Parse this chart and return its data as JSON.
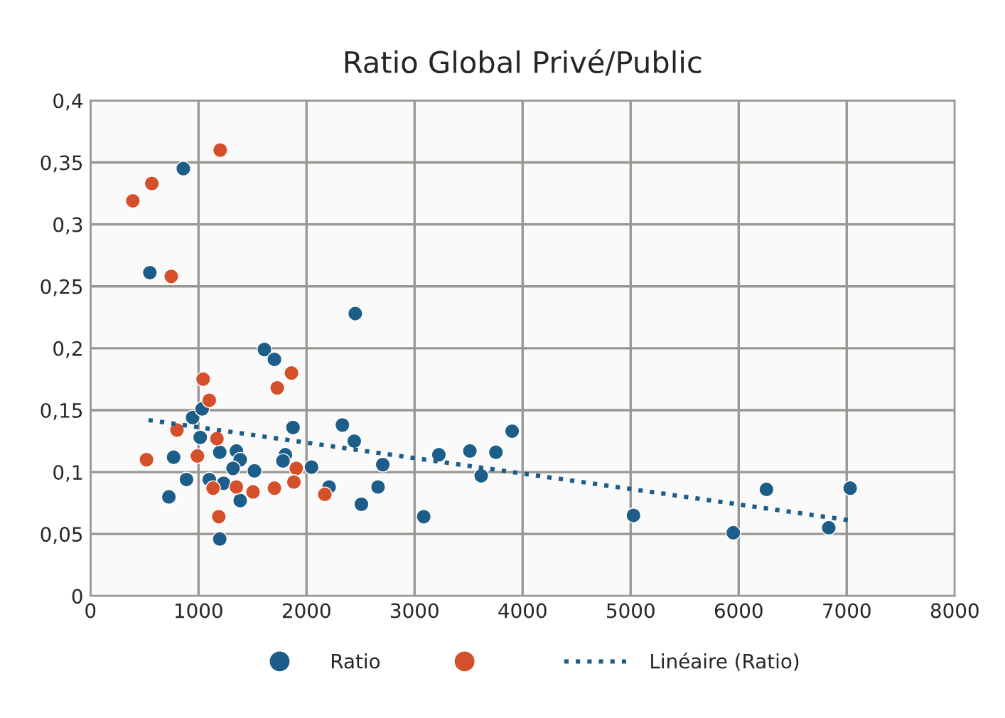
{
  "chart_data": {
    "type": "scatter",
    "title": "Ratio Global Privé/Public",
    "xlim": [
      0,
      8000
    ],
    "xticks": [
      0,
      1000,
      2000,
      3000,
      4000,
      5000,
      6000,
      7000,
      8000
    ],
    "ylim": [
      0,
      0.4
    ],
    "yticks": [
      {
        "value": 0,
        "label": "0"
      },
      {
        "value": 0.05,
        "label": "0,05"
      },
      {
        "value": 0.1,
        "label": "0,1"
      },
      {
        "value": 0.15,
        "label": "0,15"
      },
      {
        "value": 0.2,
        "label": "0,2"
      },
      {
        "value": 0.25,
        "label": "0,25"
      },
      {
        "value": 0.3,
        "label": "0,3"
      },
      {
        "value": 0.35,
        "label": "0,35"
      },
      {
        "value": 0.4,
        "label": "0,4"
      }
    ],
    "grid": true,
    "legend": "bottom",
    "marker": "circle",
    "series": [
      {
        "name": "Ratio",
        "color": "#1d5d8a",
        "x": [
          860,
          550,
          946,
          1034,
          1016,
          770,
          889,
          726,
          1100,
          1197,
          1232,
          1351,
          1386,
          1320,
          1518,
          1386,
          1197,
          1875,
          1804,
          1782,
          2046,
          2209,
          2332,
          2442,
          2706,
          2662,
          2508,
          2451,
          1610,
          1703,
          3085,
          3225,
          3512,
          3617,
          3753,
          3903,
          5026,
          5950,
          6257,
          6834,
          7032
        ],
        "values": [
          0.345,
          0.261,
          0.144,
          0.151,
          0.128,
          0.112,
          0.094,
          0.08,
          0.094,
          0.116,
          0.091,
          0.117,
          0.11,
          0.103,
          0.101,
          0.077,
          0.046,
          0.136,
          0.114,
          0.109,
          0.104,
          0.088,
          0.138,
          0.125,
          0.106,
          0.088,
          0.074,
          0.228,
          0.199,
          0.191,
          0.064,
          0.114,
          0.117,
          0.097,
          0.116,
          0.133,
          0.065,
          0.051,
          0.086,
          0.055,
          0.087
        ]
      },
      {
        "color": "#d4502a",
        "x": [
          1201,
          568,
          392,
          748,
          1043,
          1100,
          1861,
          1729,
          801,
          1171,
          519,
          990,
          1905,
          1883,
          1135,
          1351,
          1505,
          1703,
          2169,
          1188
        ],
        "values": [
          0.36,
          0.333,
          0.319,
          0.258,
          0.175,
          0.158,
          0.18,
          0.168,
          0.134,
          0.127,
          0.11,
          0.113,
          0.103,
          0.092,
          0.087,
          0.088,
          0.084,
          0.087,
          0.082,
          0.064
        ]
      },
      {
        "name": "Linéaire (Ratio)",
        "type": "line",
        "line_style": "dotted",
        "marker": "none",
        "color": "#1d5d8a",
        "x": [
          537,
          7032
        ],
        "values": [
          0.142,
          0.061
        ]
      }
    ]
  }
}
